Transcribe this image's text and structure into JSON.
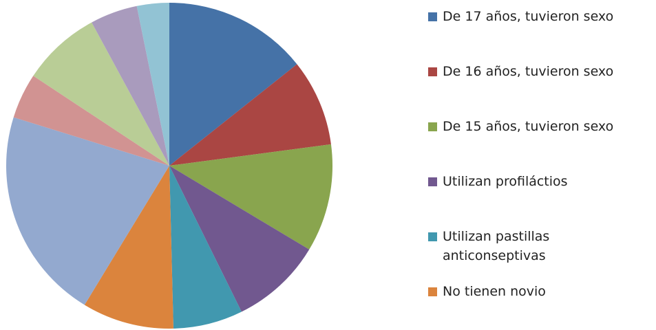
{
  "chart_data": {
    "type": "pie",
    "categories": [
      "De 17 años, tuvieron sexo",
      "De 16 años, tuvieron sexo",
      "De 15 años, tuvieron sexo",
      "Utilizan profiláctios",
      "Utilizan pastillas anticonseptivas",
      "No tienen novio",
      null,
      null,
      null,
      null,
      null
    ],
    "values": [
      14.3,
      8.6,
      10.7,
      9.1,
      6.9,
      9.1,
      21.1,
      4.5,
      7.8,
      4.7,
      3.2
    ],
    "colors": [
      "#4572a7",
      "#aa4643",
      "#89a54e",
      "#71588f",
      "#4198af",
      "#db843d",
      "#93a9cf",
      "#d19392",
      "#b9cd96",
      "#a99bbd",
      "#92c3d4"
    ]
  }
}
